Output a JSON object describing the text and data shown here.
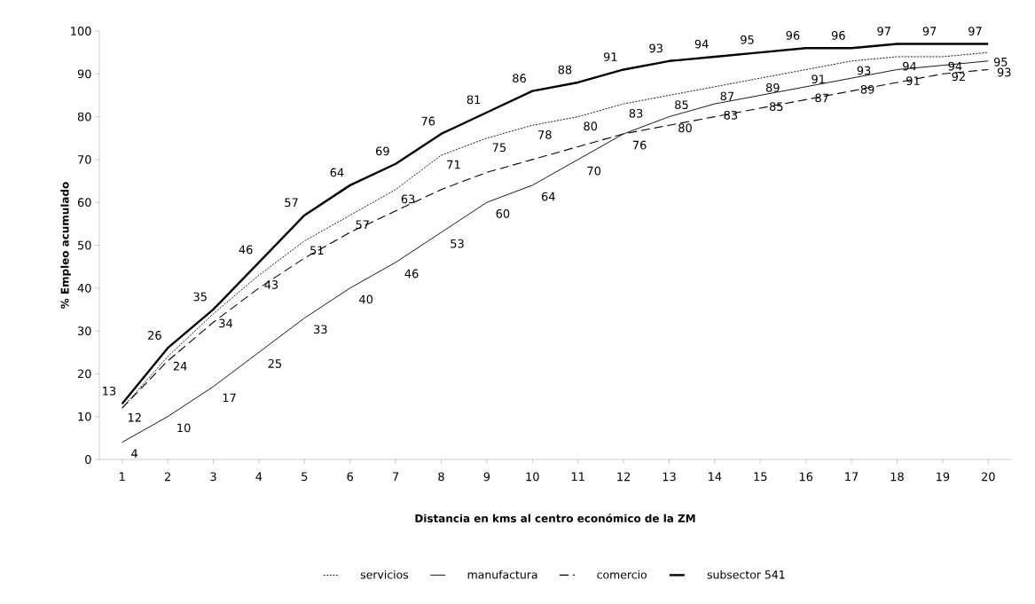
{
  "chart_data": {
    "type": "line",
    "xlabel": "Distancia  en kms al centro económico  de la ZM",
    "ylabel": "% Empleo acumulado",
    "categories": [
      "1",
      "2",
      "3",
      "4",
      "5",
      "6",
      "7",
      "8",
      "9",
      "10",
      "11",
      "12",
      "13",
      "14",
      "15",
      "16",
      "17",
      "18",
      "19",
      "20"
    ],
    "ylim": [
      0,
      100
    ],
    "yticks": [
      0,
      10,
      20,
      30,
      40,
      50,
      60,
      70,
      80,
      90,
      100
    ],
    "grid": false,
    "legend": "bottom",
    "marker": "none",
    "series": [
      {
        "name": "servicios",
        "color": "#000000",
        "line_style": "dotted",
        "data_labels": true,
        "values": [
          12,
          24,
          34,
          43,
          51,
          57,
          63,
          71,
          75,
          78,
          80,
          83,
          85,
          87,
          89,
          91,
          93,
          94,
          94,
          95
        ]
      },
      {
        "name": "manufactura",
        "color": "#000000",
        "line_style": "solid",
        "data_labels": true,
        "values": [
          4,
          10,
          17,
          25,
          33,
          40,
          46,
          53,
          60,
          64,
          70,
          76,
          80,
          83,
          85,
          87,
          89,
          91,
          92,
          93
        ]
      },
      {
        "name": "comercio",
        "color": "#000000",
        "line_style": "dashed",
        "values": [
          12,
          23,
          32,
          40,
          47,
          53,
          58,
          63,
          67,
          70,
          73,
          76,
          78,
          80,
          82,
          84,
          86,
          88,
          90,
          91
        ]
      },
      {
        "name": "subsector 541",
        "color": "#000000",
        "line_style": "solid",
        "data_labels": true,
        "values": [
          13,
          26,
          35,
          46,
          57,
          64,
          69,
          76,
          81,
          86,
          88,
          91,
          93,
          94,
          95,
          96,
          96,
          97,
          97,
          97
        ]
      }
    ]
  }
}
